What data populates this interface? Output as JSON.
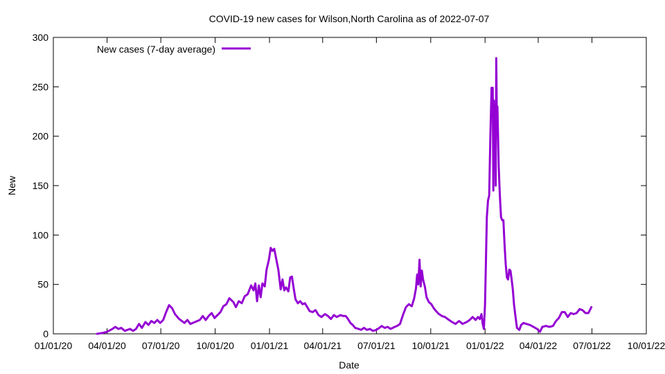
{
  "chart_data": {
    "type": "line",
    "title": "COVID-19 new cases for Wilson,North Carolina as of 2022-07-07",
    "xlabel": "Date",
    "ylabel": "New",
    "xlim": [
      "2020-01-01",
      "2022-10-01"
    ],
    "ylim": [
      0,
      300
    ],
    "yticks": [
      0,
      50,
      100,
      150,
      200,
      250,
      300
    ],
    "xticks": [
      {
        "date": "2020-01-01",
        "label": "01/01/20"
      },
      {
        "date": "2020-04-01",
        "label": "04/01/20"
      },
      {
        "date": "2020-07-01",
        "label": "07/01/20"
      },
      {
        "date": "2020-10-01",
        "label": "10/01/20"
      },
      {
        "date": "2021-01-01",
        "label": "01/01/21"
      },
      {
        "date": "2021-04-01",
        "label": "04/01/21"
      },
      {
        "date": "2021-07-01",
        "label": "07/01/21"
      },
      {
        "date": "2021-10-01",
        "label": "10/01/21"
      },
      {
        "date": "2022-01-01",
        "label": "01/01/22"
      },
      {
        "date": "2022-04-01",
        "label": "04/01/22"
      },
      {
        "date": "2022-07-01",
        "label": "07/01/22"
      },
      {
        "date": "2022-10-01",
        "label": "10/01/22"
      }
    ],
    "legend": {
      "position": "top-left",
      "label": "New cases (7-day average)"
    },
    "grid": false,
    "series": [
      {
        "name": "New cases (7-day average)",
        "color": "#9400d3",
        "points": [
          [
            "2020-03-15",
            0
          ],
          [
            "2020-03-25",
            1
          ],
          [
            "2020-04-01",
            2
          ],
          [
            "2020-04-10",
            5
          ],
          [
            "2020-04-15",
            7
          ],
          [
            "2020-04-20",
            5
          ],
          [
            "2020-04-25",
            6
          ],
          [
            "2020-05-01",
            3
          ],
          [
            "2020-05-10",
            5
          ],
          [
            "2020-05-15",
            3
          ],
          [
            "2020-05-20",
            5
          ],
          [
            "2020-05-25",
            10
          ],
          [
            "2020-05-30",
            6
          ],
          [
            "2020-06-05",
            12
          ],
          [
            "2020-06-10",
            9
          ],
          [
            "2020-06-15",
            13
          ],
          [
            "2020-06-20",
            11
          ],
          [
            "2020-06-25",
            14
          ],
          [
            "2020-06-30",
            11
          ],
          [
            "2020-07-05",
            14
          ],
          [
            "2020-07-10",
            22
          ],
          [
            "2020-07-15",
            29
          ],
          [
            "2020-07-20",
            26
          ],
          [
            "2020-07-25",
            20
          ],
          [
            "2020-08-01",
            15
          ],
          [
            "2020-08-10",
            11
          ],
          [
            "2020-08-15",
            14
          ],
          [
            "2020-08-20",
            10
          ],
          [
            "2020-08-28",
            12
          ],
          [
            "2020-09-05",
            14
          ],
          [
            "2020-09-10",
            18
          ],
          [
            "2020-09-15",
            14
          ],
          [
            "2020-09-20",
            18
          ],
          [
            "2020-09-25",
            21
          ],
          [
            "2020-09-30",
            16
          ],
          [
            "2020-10-05",
            19
          ],
          [
            "2020-10-10",
            22
          ],
          [
            "2020-10-15",
            28
          ],
          [
            "2020-10-20",
            30
          ],
          [
            "2020-10-25",
            36
          ],
          [
            "2020-11-01",
            32
          ],
          [
            "2020-11-05",
            27
          ],
          [
            "2020-11-10",
            33
          ],
          [
            "2020-11-15",
            31
          ],
          [
            "2020-11-20",
            38
          ],
          [
            "2020-11-25",
            40
          ],
          [
            "2020-12-01",
            49
          ],
          [
            "2020-12-05",
            44
          ],
          [
            "2020-12-08",
            51
          ],
          [
            "2020-12-11",
            33
          ],
          [
            "2020-12-14",
            49
          ],
          [
            "2020-12-17",
            37
          ],
          [
            "2020-12-20",
            51
          ],
          [
            "2020-12-24",
            48
          ],
          [
            "2020-12-27",
            65
          ],
          [
            "2020-12-31",
            75
          ],
          [
            "2021-01-03",
            87
          ],
          [
            "2021-01-06",
            84
          ],
          [
            "2021-01-09",
            86
          ],
          [
            "2021-01-12",
            77
          ],
          [
            "2021-01-16",
            65
          ],
          [
            "2021-01-20",
            45
          ],
          [
            "2021-01-23",
            55
          ],
          [
            "2021-01-26",
            44
          ],
          [
            "2021-01-29",
            47
          ],
          [
            "2021-02-02",
            43
          ],
          [
            "2021-02-05",
            57
          ],
          [
            "2021-02-08",
            58
          ],
          [
            "2021-02-11",
            46
          ],
          [
            "2021-02-14",
            35
          ],
          [
            "2021-02-18",
            31
          ],
          [
            "2021-02-22",
            33
          ],
          [
            "2021-02-26",
            30
          ],
          [
            "2021-03-02",
            31
          ],
          [
            "2021-03-06",
            27
          ],
          [
            "2021-03-10",
            23
          ],
          [
            "2021-03-15",
            22
          ],
          [
            "2021-03-20",
            24
          ],
          [
            "2021-03-25",
            19
          ],
          [
            "2021-03-30",
            17
          ],
          [
            "2021-04-05",
            20
          ],
          [
            "2021-04-10",
            18
          ],
          [
            "2021-04-15",
            15
          ],
          [
            "2021-04-20",
            19
          ],
          [
            "2021-04-25",
            17
          ],
          [
            "2021-05-01",
            19
          ],
          [
            "2021-05-06",
            18
          ],
          [
            "2021-05-10",
            18
          ],
          [
            "2021-05-14",
            15
          ],
          [
            "2021-05-18",
            11
          ],
          [
            "2021-05-22",
            9
          ],
          [
            "2021-05-26",
            6
          ],
          [
            "2021-06-01",
            5
          ],
          [
            "2021-06-05",
            4
          ],
          [
            "2021-06-10",
            6
          ],
          [
            "2021-06-15",
            4
          ],
          [
            "2021-06-20",
            5
          ],
          [
            "2021-06-25",
            3
          ],
          [
            "2021-07-01",
            4
          ],
          [
            "2021-07-06",
            6
          ],
          [
            "2021-07-10",
            8
          ],
          [
            "2021-07-15",
            6
          ],
          [
            "2021-07-20",
            7
          ],
          [
            "2021-07-25",
            5
          ],
          [
            "2021-08-01",
            7
          ],
          [
            "2021-08-05",
            8
          ],
          [
            "2021-08-10",
            10
          ],
          [
            "2021-08-15",
            19
          ],
          [
            "2021-08-20",
            27
          ],
          [
            "2021-08-25",
            30
          ],
          [
            "2021-08-30",
            28
          ],
          [
            "2021-09-03",
            36
          ],
          [
            "2021-09-06",
            46
          ],
          [
            "2021-09-08",
            60
          ],
          [
            "2021-09-10",
            50
          ],
          [
            "2021-09-12",
            75
          ],
          [
            "2021-09-14",
            48
          ],
          [
            "2021-09-16",
            64
          ],
          [
            "2021-09-18",
            55
          ],
          [
            "2021-09-21",
            48
          ],
          [
            "2021-09-24",
            37
          ],
          [
            "2021-09-28",
            32
          ],
          [
            "2021-10-02",
            30
          ],
          [
            "2021-10-06",
            26
          ],
          [
            "2021-10-10",
            23
          ],
          [
            "2021-10-15",
            20
          ],
          [
            "2021-10-20",
            18
          ],
          [
            "2021-10-25",
            17
          ],
          [
            "2021-11-01",
            14
          ],
          [
            "2021-11-06",
            12
          ],
          [
            "2021-11-12",
            10
          ],
          [
            "2021-11-18",
            13
          ],
          [
            "2021-11-24",
            10
          ],
          [
            "2021-12-01",
            12
          ],
          [
            "2021-12-06",
            14
          ],
          [
            "2021-12-11",
            17
          ],
          [
            "2021-12-16",
            14
          ],
          [
            "2021-12-20",
            17
          ],
          [
            "2021-12-23",
            15
          ],
          [
            "2021-12-26",
            20
          ],
          [
            "2021-12-28",
            10
          ],
          [
            "2021-12-30",
            5
          ],
          [
            "2022-01-01",
            30
          ],
          [
            "2022-01-02",
            60
          ],
          [
            "2022-01-04",
            118
          ],
          [
            "2022-01-06",
            135
          ],
          [
            "2022-01-08",
            140
          ],
          [
            "2022-01-10",
            200
          ],
          [
            "2022-01-12",
            249
          ],
          [
            "2022-01-13",
            220
          ],
          [
            "2022-01-14",
            249
          ],
          [
            "2022-01-15",
            145
          ],
          [
            "2022-01-16",
            236
          ],
          [
            "2022-01-17",
            180
          ],
          [
            "2022-01-18",
            228
          ],
          [
            "2022-01-19",
            150
          ],
          [
            "2022-01-20",
            279
          ],
          [
            "2022-01-21",
            215
          ],
          [
            "2022-01-22",
            230
          ],
          [
            "2022-01-24",
            170
          ],
          [
            "2022-01-26",
            140
          ],
          [
            "2022-01-28",
            118
          ],
          [
            "2022-01-30",
            115
          ],
          [
            "2022-02-01",
            115
          ],
          [
            "2022-02-03",
            90
          ],
          [
            "2022-02-05",
            70
          ],
          [
            "2022-02-07",
            57
          ],
          [
            "2022-02-09",
            55
          ],
          [
            "2022-02-11",
            65
          ],
          [
            "2022-02-13",
            64
          ],
          [
            "2022-02-15",
            55
          ],
          [
            "2022-02-17",
            45
          ],
          [
            "2022-02-19",
            30
          ],
          [
            "2022-02-21",
            20
          ],
          [
            "2022-02-24",
            6
          ],
          [
            "2022-02-28",
            4
          ],
          [
            "2022-03-03",
            9
          ],
          [
            "2022-03-07",
            11
          ],
          [
            "2022-03-12",
            10
          ],
          [
            "2022-03-18",
            9
          ],
          [
            "2022-03-24",
            7
          ],
          [
            "2022-03-30",
            5
          ],
          [
            "2022-04-04",
            2
          ],
          [
            "2022-04-08",
            7
          ],
          [
            "2022-04-14",
            8
          ],
          [
            "2022-04-20",
            7
          ],
          [
            "2022-04-26",
            8
          ],
          [
            "2022-05-01",
            13
          ],
          [
            "2022-05-06",
            16
          ],
          [
            "2022-05-11",
            22
          ],
          [
            "2022-05-16",
            22
          ],
          [
            "2022-05-21",
            17
          ],
          [
            "2022-05-26",
            21
          ],
          [
            "2022-05-31",
            20
          ],
          [
            "2022-06-05",
            21
          ],
          [
            "2022-06-10",
            25
          ],
          [
            "2022-06-15",
            24
          ],
          [
            "2022-06-20",
            21
          ],
          [
            "2022-06-25",
            21
          ],
          [
            "2022-06-30",
            27
          ]
        ]
      }
    ]
  }
}
